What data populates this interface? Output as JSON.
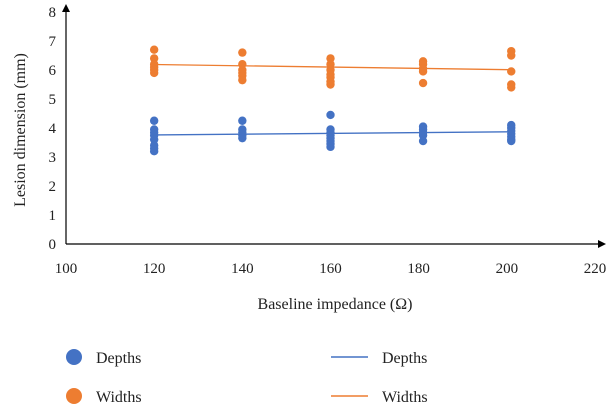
{
  "chart_data": {
    "type": "scatter",
    "xlabel": "Baseline impedance (Ω)",
    "ylabel": "Lesion dimension (mm)",
    "xlim": [
      100,
      220
    ],
    "ylim": [
      0,
      8
    ],
    "x_ticks": [
      100,
      120,
      140,
      160,
      180,
      200,
      220
    ],
    "y_ticks": [
      0,
      1,
      2,
      3,
      4,
      5,
      6,
      7,
      8
    ],
    "grid": false,
    "legend_placement": "bottom",
    "series": [
      {
        "name": "Depths",
        "kind": "points",
        "color": "#4472C4",
        "points": [
          [
            120,
            4.25
          ],
          [
            120,
            3.95
          ],
          [
            120,
            3.85
          ],
          [
            120,
            3.75
          ],
          [
            120,
            3.6
          ],
          [
            120,
            3.4
          ],
          [
            120,
            3.3
          ],
          [
            120,
            3.2
          ],
          [
            140,
            4.25
          ],
          [
            140,
            3.95
          ],
          [
            140,
            3.85
          ],
          [
            140,
            3.75
          ],
          [
            140,
            3.65
          ],
          [
            160,
            4.45
          ],
          [
            160,
            3.95
          ],
          [
            160,
            3.85
          ],
          [
            160,
            3.75
          ],
          [
            160,
            3.65
          ],
          [
            160,
            3.55
          ],
          [
            160,
            3.45
          ],
          [
            160,
            3.35
          ],
          [
            181,
            4.05
          ],
          [
            181,
            3.95
          ],
          [
            181,
            3.85
          ],
          [
            181,
            3.75
          ],
          [
            181,
            3.55
          ],
          [
            201,
            4.1
          ],
          [
            201,
            4.0
          ],
          [
            201,
            3.9
          ],
          [
            201,
            3.8
          ],
          [
            201,
            3.7
          ],
          [
            201,
            3.6
          ],
          [
            201,
            3.55
          ]
        ]
      },
      {
        "name": "Widths",
        "kind": "points",
        "color": "#ED7D31",
        "points": [
          [
            120,
            6.7
          ],
          [
            120,
            6.4
          ],
          [
            120,
            6.2
          ],
          [
            120,
            6.1
          ],
          [
            120,
            6.0
          ],
          [
            120,
            5.9
          ],
          [
            140,
            6.6
          ],
          [
            140,
            6.2
          ],
          [
            140,
            6.0
          ],
          [
            140,
            5.9
          ],
          [
            140,
            5.8
          ],
          [
            140,
            5.65
          ],
          [
            160,
            6.4
          ],
          [
            160,
            6.2
          ],
          [
            160,
            6.0
          ],
          [
            160,
            5.85
          ],
          [
            160,
            5.75
          ],
          [
            160,
            5.6
          ],
          [
            160,
            5.5
          ],
          [
            181,
            6.3
          ],
          [
            181,
            6.2
          ],
          [
            181,
            6.05
          ],
          [
            181,
            5.95
          ],
          [
            181,
            5.55
          ],
          [
            201,
            6.65
          ],
          [
            201,
            6.5
          ],
          [
            201,
            5.95
          ],
          [
            201,
            5.5
          ],
          [
            201,
            5.4
          ]
        ]
      },
      {
        "name": "Depths",
        "kind": "trendline",
        "color": "#4472C4",
        "x": [
          120,
          201
        ],
        "y": [
          3.76,
          3.87
        ]
      },
      {
        "name": "Widths",
        "kind": "trendline",
        "color": "#ED7D31",
        "x": [
          120,
          201
        ],
        "y": [
          6.19,
          6.01
        ]
      }
    ]
  }
}
